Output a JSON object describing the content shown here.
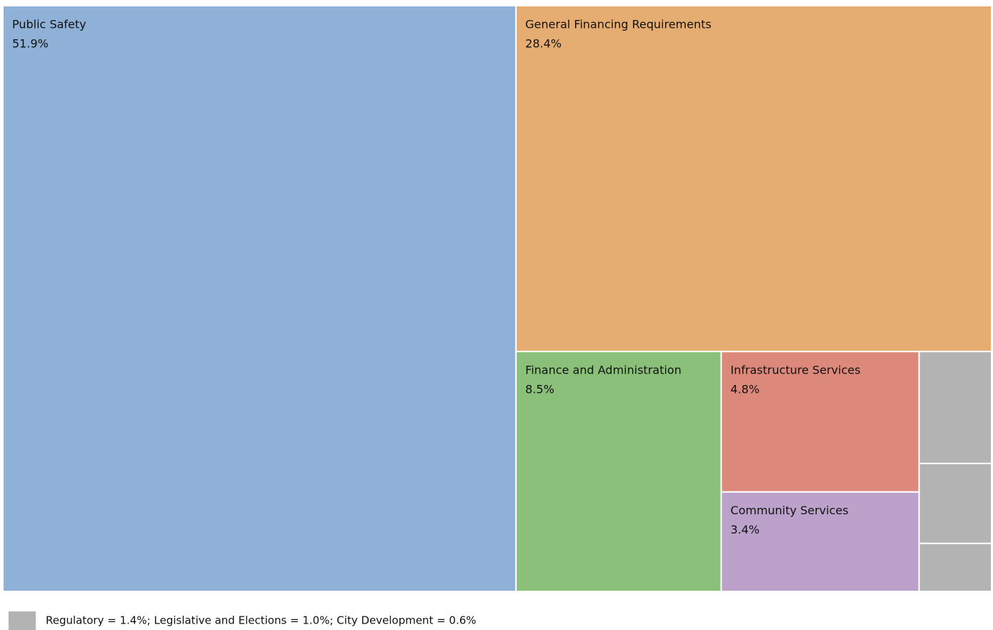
{
  "chart_data": {
    "type": "treemap",
    "categories": [
      "Public Safety",
      "General Financing Requirements",
      "Finance and Administration",
      "Infrastructure Services",
      "Community Services",
      "Regulatory",
      "Legislative and Elections",
      "City Development"
    ],
    "values": [
      51.9,
      28.4,
      8.5,
      4.8,
      3.4,
      1.4,
      1.0,
      0.6
    ],
    "value_labels": [
      "51.9%",
      "28.4%",
      "8.5%",
      "4.8%",
      "3.4%",
      null,
      null,
      null
    ],
    "colors": [
      "#8fb1d7",
      "#e6ad72",
      "#8bc07a",
      "#dc897b",
      "#bca2cb",
      "#b3b3b3",
      "#b3b3b3",
      "#b3b3b3"
    ],
    "footnote": "Regulatory = 1.4%; Legislative and Elections = 1.0%; City Development = 0.6%",
    "footnote_color": "#b3b3b3"
  }
}
